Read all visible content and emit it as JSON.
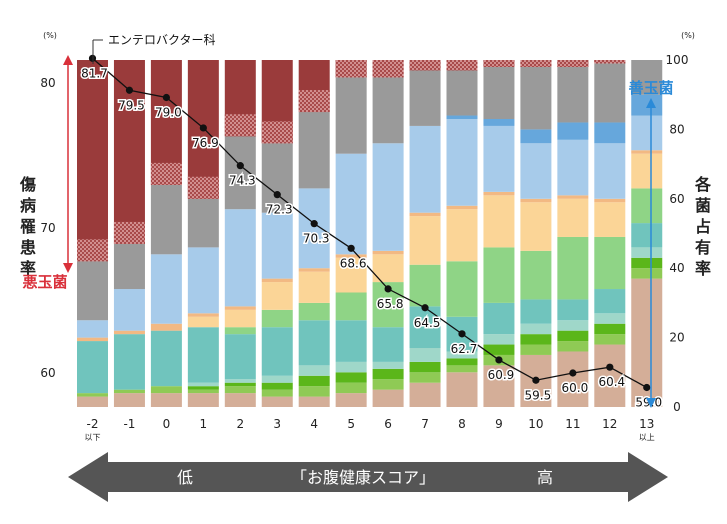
{
  "chart_data": {
    "type": "bar",
    "categories": [
      "-2",
      "-1",
      "0",
      "1",
      "2",
      "3",
      "4",
      "5",
      "6",
      "7",
      "8",
      "9",
      "10",
      "11",
      "12",
      "13"
    ],
    "category_sublabels": [
      "以下",
      "",
      "",
      "",
      "",
      "",
      "",
      "",
      "",
      "",
      "",
      "",
      "",
      "",
      "",
      "以上"
    ],
    "stack_colors": [
      "#d4ae98",
      "#8fca55",
      "#5bb61a",
      "#9fd7c9",
      "#70c4bd",
      "#8fd486",
      "#fbd597",
      "#f2b983",
      "#a7cbea",
      "#66a7dc",
      "#9a9a9a",
      "#9a3b3b"
    ],
    "stacks": [
      [
        3,
        1,
        0,
        0,
        15,
        0,
        0,
        1,
        5,
        0,
        17,
        58
      ],
      [
        4,
        1,
        0,
        0,
        16,
        0,
        0,
        1,
        12,
        0,
        13,
        53
      ],
      [
        4,
        2,
        0,
        0,
        16,
        0,
        0,
        2,
        20,
        0,
        20,
        36
      ],
      [
        4,
        1,
        1,
        1,
        16,
        0,
        3,
        1,
        19,
        0,
        14,
        40
      ],
      [
        4,
        2,
        1,
        1,
        13,
        2,
        5,
        1,
        28,
        0,
        21,
        22
      ],
      [
        3,
        2,
        2,
        2,
        14,
        5,
        8,
        1,
        19,
        0,
        20,
        24
      ],
      [
        3,
        3,
        3,
        3,
        13,
        5,
        9,
        1,
        23,
        0,
        22,
        15
      ],
      [
        4,
        3,
        3,
        3,
        12,
        8,
        10,
        1,
        29,
        0,
        22,
        5
      ],
      [
        5,
        3,
        3,
        2,
        10,
        13,
        8,
        1,
        31,
        0,
        19,
        5
      ],
      [
        7,
        3,
        3,
        4,
        12,
        12,
        14,
        1,
        25,
        0,
        16,
        3
      ],
      [
        10,
        2,
        2,
        2,
        10,
        16,
        15,
        1,
        25,
        1,
        13,
        3
      ],
      [
        12,
        3,
        3,
        3,
        9,
        16,
        15,
        1,
        19,
        2,
        15,
        2
      ],
      [
        15,
        3,
        3,
        3,
        7,
        14,
        14,
        1,
        16,
        4,
        18,
        2
      ],
      [
        16,
        3,
        3,
        3,
        6,
        18,
        11,
        1,
        16,
        5,
        16,
        2
      ],
      [
        18,
        3,
        3,
        3,
        7,
        15,
        10,
        1,
        16,
        6,
        17,
        1
      ],
      [
        37,
        3,
        3,
        3,
        7,
        10,
        10,
        1,
        10,
        6,
        10,
        0
      ]
    ],
    "line_values": [
      81.7,
      79.5,
      79.0,
      76.9,
      74.3,
      72.3,
      70.3,
      68.6,
      65.8,
      64.5,
      62.7,
      60.9,
      59.5,
      60.0,
      60.4,
      59.0
    ],
    "line_labels": [
      "81.7",
      "79.5",
      "79.0",
      "76.9",
      "74.3",
      "72.3",
      "70.3",
      "68.6",
      "65.8",
      "64.5",
      "62.7",
      "60.9",
      "59.5",
      "60.0",
      "60.4",
      "59.0"
    ],
    "left_axis": {
      "range": [
        57,
        83
      ],
      "ticks": [
        "60",
        "70",
        "80"
      ],
      "unit": "(%)",
      "label": [
        "傷",
        "病",
        "罹",
        "患",
        "率"
      ]
    },
    "right_axis": {
      "range": [
        0,
        100
      ],
      "ticks": [
        "0",
        "20",
        "40",
        "60",
        "80",
        "100"
      ],
      "unit": "(%)",
      "label": [
        "各",
        "菌",
        "占",
        "有",
        "率"
      ]
    },
    "annotations": {
      "enterobacter": "エンテロバクター科",
      "bad_bacteria": "悪玉菌",
      "good_bacteria": "善玉菌"
    },
    "bottom_arrow": {
      "low": "低",
      "title": "「お腹健康スコア」",
      "high": "高"
    },
    "colors": {
      "bad_red": "#d9303a",
      "good_blue": "#2a8ad8",
      "arrow_gray": "#555555"
    }
  }
}
